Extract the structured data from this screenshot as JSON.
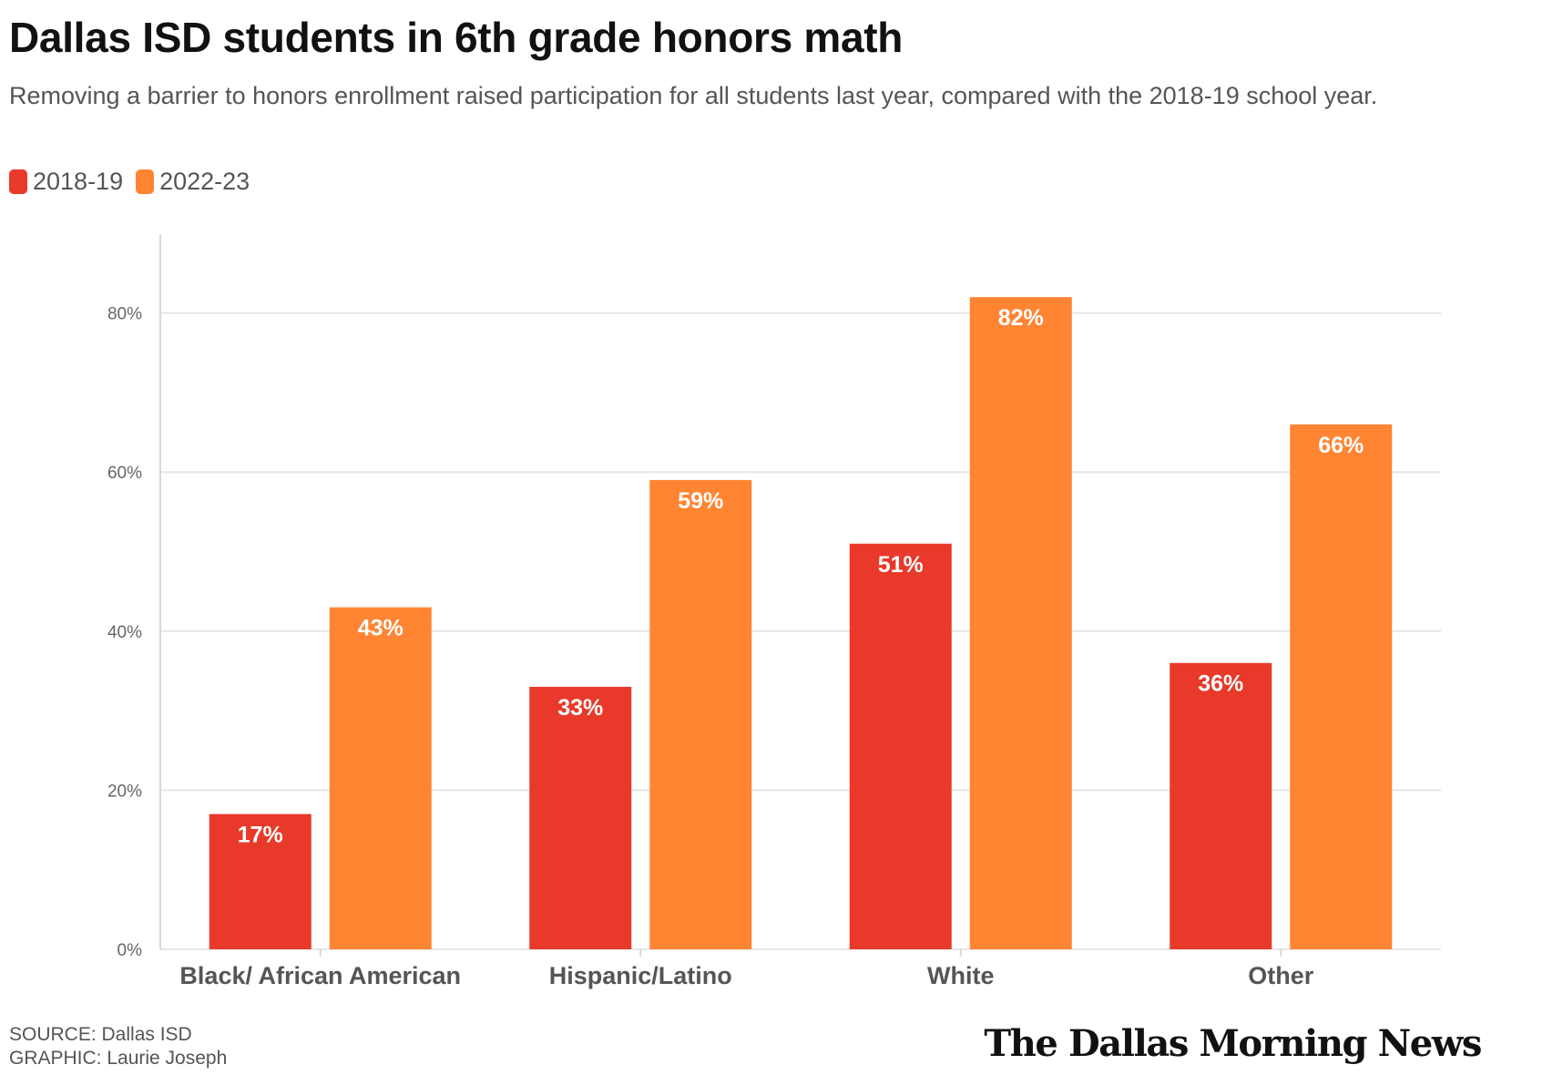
{
  "header": {
    "title": "Dallas ISD students in 6th grade honors math",
    "subtitle": "Removing a barrier to honors enrollment raised participation for all students last year, compared with the 2018-19 school year."
  },
  "legend": {
    "items": [
      {
        "label": "2018-19",
        "color": "#e8392a"
      },
      {
        "label": "2022-23",
        "color": "#ff8533"
      }
    ]
  },
  "footer": {
    "source": "SOURCE: Dallas ISD",
    "graphic": "GRAPHIC: Laurie Joseph",
    "logo": "The Dallas Morning News"
  },
  "chart_data": {
    "type": "bar",
    "categories": [
      "Black/ African American",
      "Hispanic/Latino",
      "White",
      "Other"
    ],
    "series": [
      {
        "name": "2018-19",
        "values": [
          17,
          33,
          51,
          36
        ],
        "color": "#e8392a"
      },
      {
        "name": "2022-23",
        "values": [
          43,
          59,
          82,
          66
        ],
        "color": "#ff8533"
      }
    ],
    "data_labels": [
      [
        "17%",
        "33%",
        "51%",
        "36%"
      ],
      [
        "43%",
        "59%",
        "82%",
        "66%"
      ]
    ],
    "yticks": [
      "0%",
      "20%",
      "40%",
      "60%",
      "80%"
    ],
    "ytick_values": [
      0,
      20,
      40,
      60,
      80
    ],
    "ylim": [
      0,
      90
    ],
    "grid": true,
    "legend_position": "top-left"
  }
}
